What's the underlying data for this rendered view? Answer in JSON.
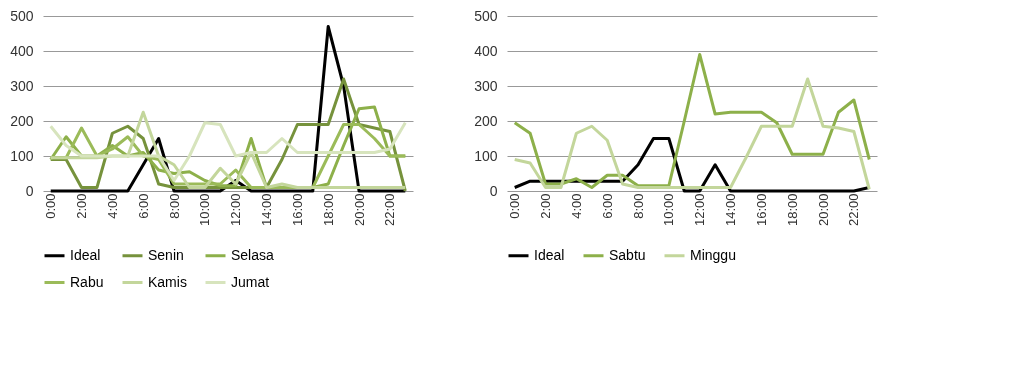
{
  "chart_data": [
    {
      "type": "line",
      "categories": [
        "0:00",
        null,
        "2:00",
        null,
        "4:00",
        null,
        "6:00",
        null,
        "8:00",
        null,
        "10:00",
        null,
        "12:00",
        null,
        "14:00",
        null,
        "16:00",
        null,
        "18:00",
        null,
        "20:00",
        null,
        "22:00",
        null
      ],
      "ylim": [
        0,
        500
      ],
      "yticks": [
        0,
        100,
        200,
        300,
        400,
        500
      ],
      "grid": "y",
      "legend": "bottom",
      "line_style": "solid",
      "series": [
        {
          "name": "Ideal",
          "color": "#000000",
          "values": [
            0,
            0,
            0,
            0,
            0,
            0,
            75,
            150,
            0,
            0,
            0,
            0,
            30,
            0,
            0,
            0,
            0,
            0,
            470,
            300,
            0,
            0,
            0,
            0
          ]
        },
        {
          "name": "Senin",
          "color": "#76923c",
          "values": [
            90,
            90,
            10,
            10,
            165,
            185,
            150,
            20,
            10,
            10,
            10,
            10,
            10,
            10,
            10,
            90,
            190,
            190,
            190,
            320,
            190,
            180,
            170,
            0
          ]
        },
        {
          "name": "Selasa",
          "color": "#8db04a",
          "values": [
            90,
            155,
            100,
            100,
            130,
            100,
            110,
            60,
            50,
            55,
            30,
            15,
            15,
            150,
            10,
            10,
            10,
            10,
            20,
            130,
            235,
            240,
            100,
            100
          ]
        },
        {
          "name": "Rabu",
          "color": "#9bbb59",
          "values": [
            95,
            95,
            180,
            100,
            120,
            155,
            100,
            90,
            20,
            20,
            20,
            20,
            60,
            10,
            10,
            10,
            10,
            10,
            100,
            190,
            190,
            150,
            100,
            100
          ]
        },
        {
          "name": "Kamis",
          "color": "#c3d69b",
          "values": [
            95,
            95,
            95,
            95,
            100,
            100,
            225,
            100,
            75,
            10,
            10,
            65,
            20,
            110,
            10,
            20,
            10,
            10,
            10,
            10,
            10,
            10,
            10,
            10
          ]
        },
        {
          "name": "Jumat",
          "color": "#d7e4bd",
          "values": [
            185,
            130,
            100,
            100,
            100,
            100,
            100,
            100,
            30,
            100,
            195,
            190,
            100,
            110,
            110,
            150,
            110,
            110,
            110,
            110,
            110,
            110,
            120,
            195
          ]
        }
      ]
    },
    {
      "type": "line",
      "categories": [
        "0:00",
        null,
        "2:00",
        null,
        "4:00",
        null,
        "6:00",
        null,
        "8:00",
        null,
        "10:00",
        null,
        "12:00",
        null,
        "14:00",
        null,
        "16:00",
        null,
        "18:00",
        null,
        "20:00",
        null,
        "22:00",
        null
      ],
      "ylim": [
        0,
        500
      ],
      "yticks": [
        0,
        100,
        200,
        300,
        400,
        500
      ],
      "grid": "y",
      "legend": "bottom",
      "line_style": "solid",
      "series": [
        {
          "name": "Ideal",
          "color": "#000000",
          "values": [
            10,
            28,
            28,
            28,
            28,
            28,
            28,
            28,
            75,
            150,
            150,
            0,
            0,
            75,
            0,
            0,
            0,
            0,
            0,
            0,
            0,
            0,
            0,
            10
          ]
        },
        {
          "name": "Sabtu",
          "color": "#8db04a",
          "values": [
            195,
            165,
            20,
            20,
            35,
            10,
            45,
            45,
            15,
            15,
            15,
            200,
            390,
            220,
            225,
            225,
            225,
            195,
            105,
            105,
            105,
            225,
            260,
            90
          ]
        },
        {
          "name": "Minggu",
          "color": "#c3d69b",
          "values": [
            90,
            80,
            10,
            10,
            165,
            185,
            145,
            20,
            10,
            10,
            10,
            10,
            10,
            10,
            10,
            95,
            185,
            185,
            185,
            320,
            185,
            180,
            170,
            5
          ]
        }
      ]
    }
  ]
}
